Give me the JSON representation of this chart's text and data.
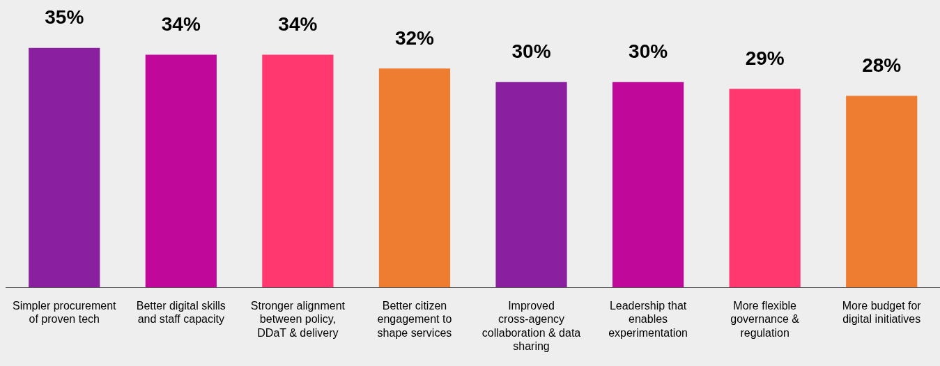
{
  "chart_data": {
    "type": "bar",
    "categories": [
      "Simpler procurement of proven tech",
      "Better digital skills and staff capacity",
      "Stronger alignment between policy, DDaT & delivery",
      "Better citizen engagement to shape services",
      "Improved cross-agency collaboration & data sharing",
      "Leadership that enables experimentation",
      "More flexible governance & regulation",
      "More budget for digital initiatives"
    ],
    "values": [
      35,
      34,
      34,
      32,
      30,
      30,
      29,
      28
    ],
    "colors": [
      "#8a1fa0",
      "#c0099a",
      "#ff3870",
      "#ee7d31",
      "#8a1fa0",
      "#c0099a",
      "#ff3870",
      "#ee7d31"
    ],
    "value_labels": [
      "35%",
      "34%",
      "34%",
      "32%",
      "30%",
      "30%",
      "29%",
      "28%"
    ],
    "ylim": [
      0,
      42
    ],
    "grid": false,
    "legend": false,
    "tick_labels": "x"
  }
}
